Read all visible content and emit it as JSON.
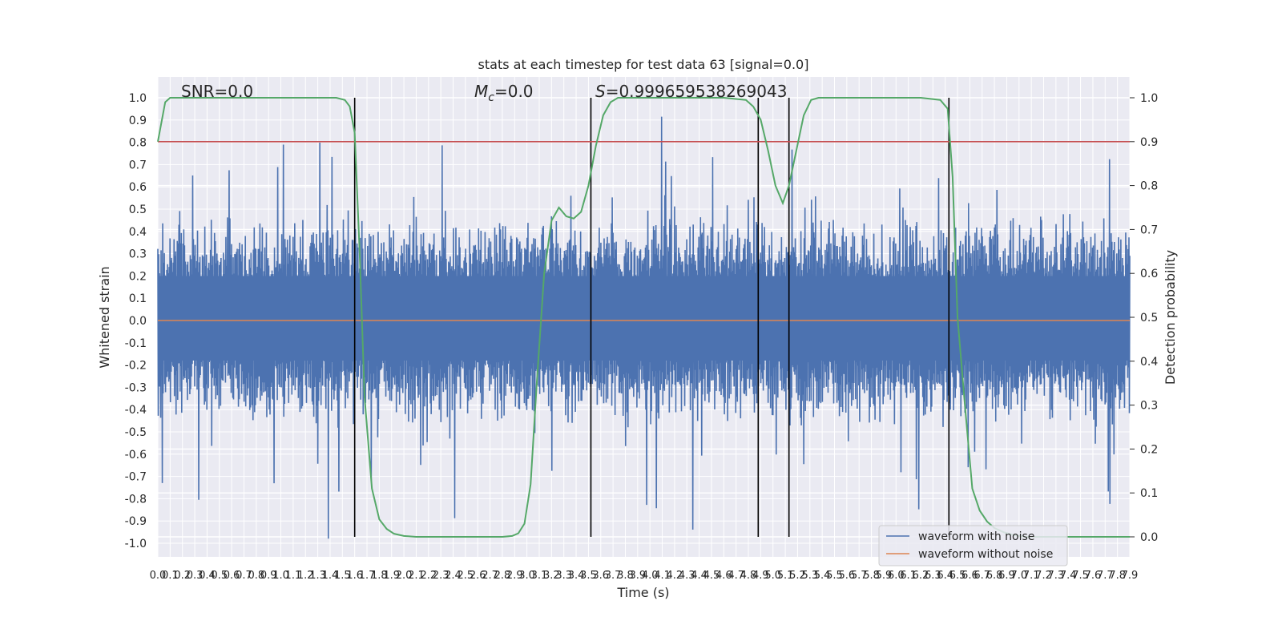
{
  "chart_data": {
    "type": "line",
    "title": "stats at each timestep for test data 63 [signal=0.0]",
    "xlabel": "Time (s)",
    "ylabel": "Whitened strain",
    "y2label": "Detection probability",
    "xlim": [
      0.0,
      7.9
    ],
    "ylim": [
      -1.08,
      1.1
    ],
    "y2lim": [
      -0.05,
      1.05
    ],
    "grid": true,
    "legend_position": "lower right",
    "x_ticks": [
      "0.0",
      "0.1",
      "0.2",
      "0.3",
      "0.4",
      "0.5",
      "0.6",
      "0.7",
      "0.8",
      "0.9",
      "1.0",
      "1.1",
      "1.2",
      "1.3",
      "1.4",
      "1.5",
      "1.6",
      "1.7",
      "1.8",
      "1.9",
      "2.0",
      "2.1",
      "2.2",
      "2.3",
      "2.4",
      "2.5",
      "2.6",
      "2.7",
      "2.8",
      "2.9",
      "3.0",
      "3.1",
      "3.2",
      "3.3",
      "3.4",
      "3.5",
      "3.6",
      "3.7",
      "3.8",
      "3.9",
      "4.0",
      "4.1",
      "4.2",
      "4.3",
      "4.4",
      "4.5",
      "4.6",
      "4.7",
      "4.8",
      "4.9",
      "5.0",
      "5.1",
      "5.2",
      "5.3",
      "5.4",
      "5.5",
      "5.6",
      "5.7",
      "5.8",
      "5.9",
      "6.0",
      "6.1",
      "6.2",
      "6.3",
      "6.4",
      "6.5",
      "6.6",
      "6.7",
      "6.8",
      "6.9",
      "7.0",
      "7.1",
      "7.2",
      "7.3",
      "7.4",
      "7.5",
      "7.6",
      "7.7",
      "7.8",
      "7.9"
    ],
    "y_ticks": [
      "1.0",
      "0.9",
      "0.8",
      "0.7",
      "0.6",
      "0.5",
      "0.4",
      "0.3",
      "0.2",
      "0.1",
      "0.0",
      "-0.1",
      "-0.2",
      "-0.3",
      "-0.4",
      "-0.5",
      "-0.6",
      "-0.7",
      "-0.8",
      "-0.9",
      "-1.0"
    ],
    "y2_ticks": [
      "1.0",
      "0.9",
      "0.8",
      "0.7",
      "0.6",
      "0.5",
      "0.4",
      "0.3",
      "0.2",
      "0.1",
      "0.0"
    ],
    "annotations": {
      "snr": "SNR=0.0",
      "mc_prefix": "M",
      "mc_sub": "c",
      "mc_suffix": "=0.0",
      "s_italic": "S",
      "s_suffix": "=0.999659538269043"
    },
    "threshold": {
      "axis": "right",
      "value": 0.9,
      "color": "#c44e52"
    },
    "vertical_markers": [
      1.6,
      3.52,
      4.88,
      5.13,
      6.43
    ],
    "series": [
      {
        "name": "waveform with noise",
        "color": "#4c72b0",
        "axis": "left",
        "description_kind": "noise",
        "envelope_typical_abs": 0.45,
        "envelope_peak_abs": 1.0
      },
      {
        "name": "waveform without noise",
        "color": "#dd8452",
        "axis": "left",
        "x": [
          0.0,
          7.9
        ],
        "y": [
          0.0,
          0.0
        ]
      },
      {
        "name": "detection probability",
        "color": "#55a868",
        "axis": "right",
        "legend": false,
        "x": [
          0.0,
          0.06,
          0.1,
          0.2,
          0.5,
          1.0,
          1.45,
          1.52,
          1.56,
          1.6,
          1.64,
          1.68,
          1.74,
          1.8,
          1.86,
          1.92,
          2.0,
          2.1,
          2.3,
          2.6,
          2.8,
          2.88,
          2.93,
          2.98,
          3.03,
          3.08,
          3.14,
          3.2,
          3.26,
          3.32,
          3.38,
          3.44,
          3.5,
          3.56,
          3.62,
          3.68,
          3.74,
          3.8,
          3.9,
          4.2,
          4.6,
          4.78,
          4.84,
          4.9,
          4.96,
          5.02,
          5.08,
          5.13,
          5.19,
          5.25,
          5.31,
          5.37,
          5.44,
          5.55,
          5.8,
          6.2,
          6.36,
          6.42,
          6.46,
          6.5,
          6.56,
          6.62,
          6.68,
          6.74,
          6.8,
          6.88,
          6.96,
          7.05,
          7.2,
          7.5,
          7.9
        ],
        "y": [
          0.9,
          0.99,
          1.0,
          1.0,
          1.0,
          1.0,
          1.0,
          0.995,
          0.98,
          0.92,
          0.65,
          0.32,
          0.11,
          0.04,
          0.018,
          0.007,
          0.002,
          0.0,
          0.0,
          0.0,
          0.0,
          0.002,
          0.008,
          0.03,
          0.12,
          0.35,
          0.6,
          0.72,
          0.75,
          0.73,
          0.725,
          0.74,
          0.8,
          0.89,
          0.96,
          0.99,
          1.0,
          1.0,
          1.0,
          1.0,
          1.0,
          0.995,
          0.98,
          0.95,
          0.88,
          0.8,
          0.76,
          0.8,
          0.88,
          0.96,
          0.995,
          1.0,
          1.0,
          1.0,
          1.0,
          1.0,
          0.995,
          0.975,
          0.82,
          0.5,
          0.3,
          0.11,
          0.06,
          0.035,
          0.02,
          0.01,
          0.004,
          0.0,
          0.0,
          0.0,
          0.0
        ]
      }
    ]
  }
}
